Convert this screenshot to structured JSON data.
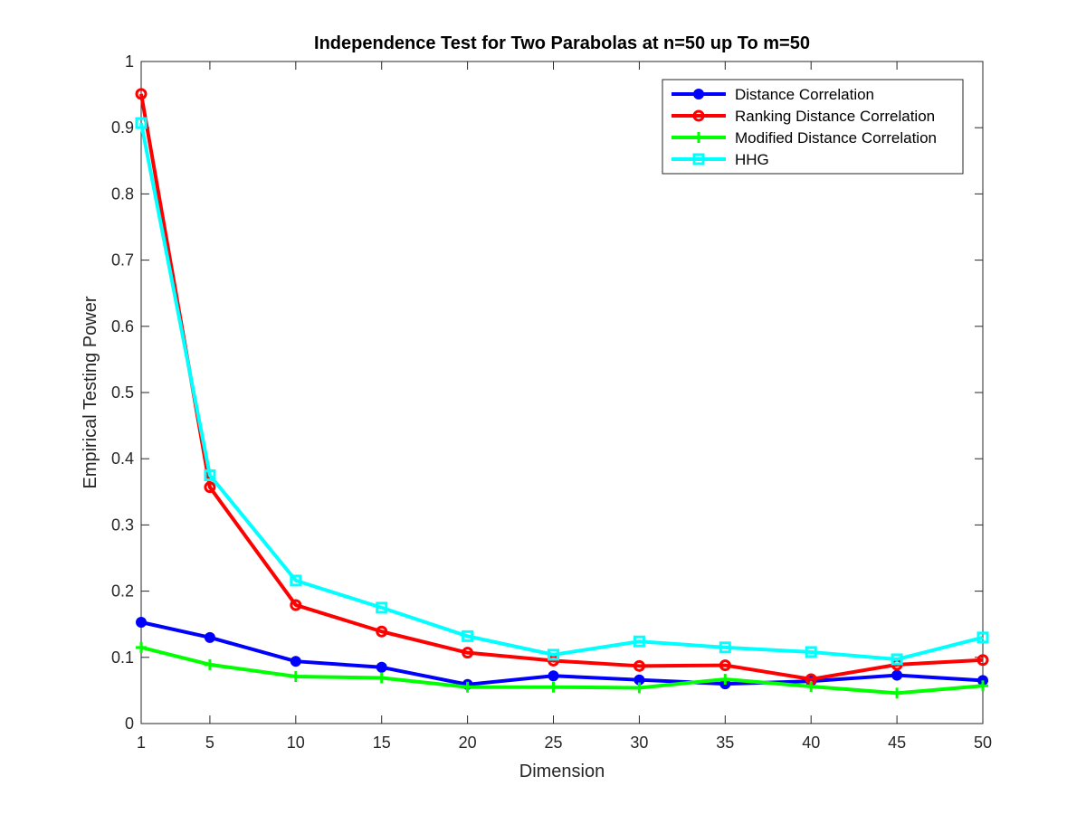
{
  "chart_data": {
    "type": "line",
    "title": "Independence Test for Two Parabolas at n=50 up To m=50",
    "xlabel": "Dimension",
    "ylabel": "Empirical Testing Power",
    "x": [
      1,
      5,
      10,
      15,
      20,
      25,
      30,
      35,
      40,
      45,
      50
    ],
    "xlim": [
      1,
      50
    ],
    "ylim": [
      0,
      1
    ],
    "xticks": [
      "1",
      "5",
      "10",
      "15",
      "20",
      "25",
      "30",
      "35",
      "40",
      "45",
      "50"
    ],
    "xtick_values": [
      1,
      5,
      10,
      15,
      20,
      25,
      30,
      35,
      40,
      45,
      50
    ],
    "yticks": [
      "0",
      "0.1",
      "0.2",
      "0.3",
      "0.4",
      "0.5",
      "0.6",
      "0.7",
      "0.8",
      "0.9",
      "1"
    ],
    "ytick_values": [
      0,
      0.1,
      0.2,
      0.3,
      0.4,
      0.5,
      0.6,
      0.7,
      0.8,
      0.9,
      1
    ],
    "grid": false,
    "legend_position": "top-right",
    "series": [
      {
        "name": "Distance Correlation",
        "color": "#0000ff",
        "marker": "filled-circle",
        "values": [
          0.153,
          0.13,
          0.094,
          0.085,
          0.059,
          0.072,
          0.066,
          0.06,
          0.064,
          0.073,
          0.065
        ]
      },
      {
        "name": "Ranking Distance Correlation",
        "color": "#ff0000",
        "marker": "open-circle",
        "values": [
          0.951,
          0.357,
          0.179,
          0.139,
          0.107,
          0.095,
          0.087,
          0.088,
          0.067,
          0.089,
          0.096
        ]
      },
      {
        "name": "Modified Distance Correlation",
        "color": "#00ff00",
        "marker": "plus",
        "values": [
          0.115,
          0.089,
          0.071,
          0.069,
          0.055,
          0.055,
          0.054,
          0.067,
          0.056,
          0.046,
          0.057
        ]
      },
      {
        "name": "HHG",
        "color": "#00ffff",
        "marker": "open-square",
        "values": [
          0.907,
          0.375,
          0.216,
          0.175,
          0.132,
          0.104,
          0.124,
          0.115,
          0.108,
          0.097,
          0.13
        ]
      }
    ]
  }
}
